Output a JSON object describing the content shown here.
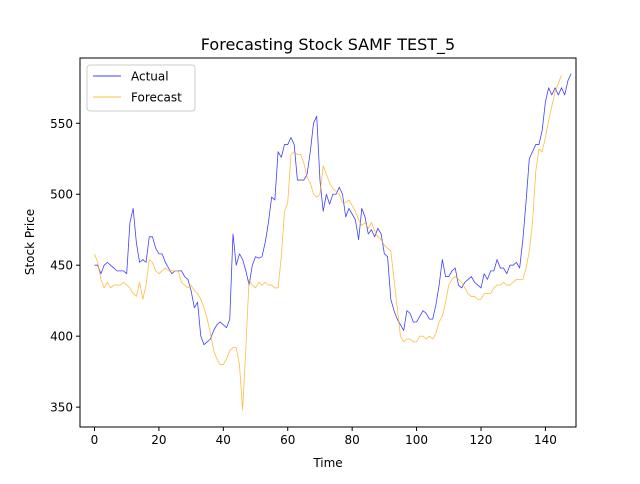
{
  "chart_data": {
    "type": "line",
    "title": "Forecasting Stock SAMF TEST_5",
    "xlabel": "Time",
    "ylabel": "Stock Price",
    "xlim": [
      -4.5,
      149.5
    ],
    "ylim": [
      336,
      596
    ],
    "xticks": [
      0,
      20,
      40,
      60,
      80,
      100,
      120,
      140
    ],
    "yticks": [
      350,
      400,
      450,
      500,
      550
    ],
    "grid": false,
    "legend_position": "top-left",
    "series": [
      {
        "name": "Actual",
        "color": "#0000ff",
        "values": [
          450,
          450,
          444,
          450,
          452,
          450,
          448,
          446,
          446,
          446,
          444,
          480,
          490,
          466,
          452,
          454,
          452,
          470,
          470,
          462,
          458,
          458,
          452,
          448,
          444,
          446,
          446,
          446,
          442,
          440,
          432,
          420,
          424,
          400,
          394,
          396,
          398,
          404,
          408,
          410,
          408,
          406,
          412,
          472,
          450,
          458,
          454,
          446,
          436,
          450,
          456,
          455,
          456,
          466,
          480,
          498,
          496,
          530,
          526,
          535,
          535,
          540,
          535,
          510,
          510,
          510,
          514,
          530,
          550,
          555,
          510,
          488,
          500,
          493,
          500,
          500,
          505,
          500,
          484,
          490,
          486,
          482,
          468,
          490,
          484,
          472,
          475,
          470,
          476,
          472,
          458,
          456,
          426,
          418,
          412,
          408,
          404,
          418,
          416,
          410,
          410,
          414,
          418,
          416,
          412,
          412,
          422,
          436,
          454,
          442,
          442,
          446,
          448,
          436,
          434,
          438,
          440,
          442,
          438,
          436,
          434,
          444,
          440,
          446,
          446,
          454,
          448,
          448,
          444,
          450,
          450,
          452,
          448,
          468,
          495,
          525,
          530,
          535,
          535,
          545,
          565,
          575,
          570,
          575,
          570,
          575,
          570,
          580,
          585
        ]
      },
      {
        "name": "Forecast",
        "color": "#ffa500",
        "values": [
          458,
          452,
          440,
          434,
          438,
          434,
          436,
          436,
          436,
          438,
          436,
          434,
          430,
          428,
          438,
          426,
          436,
          454,
          452,
          446,
          444,
          446,
          448,
          446,
          446,
          446,
          446,
          438,
          436,
          434,
          436,
          432,
          430,
          426,
          420,
          412,
          402,
          390,
          384,
          380,
          380,
          384,
          390,
          392,
          392,
          380,
          348,
          392,
          440,
          436,
          434,
          438,
          436,
          438,
          436,
          436,
          434,
          434,
          456,
          488,
          494,
          528,
          530,
          528,
          528,
          522,
          512,
          508,
          500,
          498,
          500,
          520,
          514,
          508,
          504,
          502,
          500,
          494,
          494,
          496,
          492,
          488,
          482,
          478,
          480,
          476,
          480,
          474,
          470,
          468,
          464,
          462,
          460,
          440,
          420,
          400,
          396,
          398,
          398,
          396,
          396,
          400,
          400,
          398,
          400,
          398,
          402,
          410,
          414,
          424,
          436,
          440,
          442,
          440,
          438,
          434,
          430,
          428,
          428,
          426,
          426,
          430,
          430,
          430,
          434,
          436,
          436,
          438,
          436,
          436,
          438,
          440,
          440,
          440,
          448,
          460,
          480,
          516,
          532,
          530,
          540,
          552,
          562,
          572,
          578,
          584
        ]
      }
    ]
  }
}
